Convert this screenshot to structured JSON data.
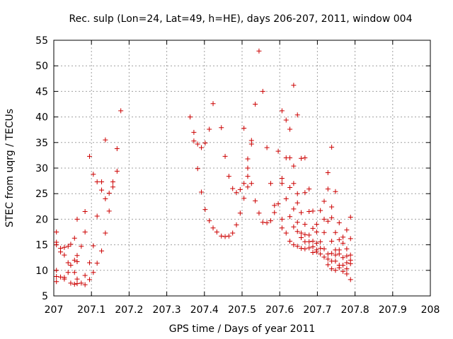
{
  "chart_data": {
    "type": "scatter",
    "title": "Rec. sulp (Lon=24, Lat=49, h=HE), days 206-207, 2011, window 004",
    "xlabel": "GPS time / Days of year 2011",
    "ylabel": "STEC from uqrg / TECUs",
    "xlim": [
      207,
      208
    ],
    "ylim": [
      5,
      55
    ],
    "x_ticks": [
      "207",
      "207.1",
      "207.2",
      "207.3",
      "207.4",
      "207.5",
      "207.6",
      "207.7",
      "207.8",
      "207.9",
      "208"
    ],
    "y_ticks": [
      "5",
      "10",
      "15",
      "20",
      "25",
      "30",
      "35",
      "40",
      "45",
      "50",
      "55"
    ],
    "grid": true,
    "marker": "+",
    "color": "#cc0000",
    "points": [
      [
        207.007,
        17.5
      ],
      [
        207.007,
        15.5
      ],
      [
        207.007,
        15.0
      ],
      [
        207.007,
        10.0
      ],
      [
        207.007,
        8.8
      ],
      [
        207.007,
        7.8
      ],
      [
        207.018,
        14.3
      ],
      [
        207.018,
        13.6
      ],
      [
        207.018,
        8.7
      ],
      [
        207.028,
        14.5
      ],
      [
        207.028,
        13.0
      ],
      [
        207.028,
        8.6
      ],
      [
        207.028,
        8.3
      ],
      [
        207.038,
        14.7
      ],
      [
        207.038,
        11.5
      ],
      [
        207.038,
        9.6
      ],
      [
        207.045,
        15.1
      ],
      [
        207.045,
        11.0
      ],
      [
        207.045,
        7.5
      ],
      [
        207.055,
        16.3
      ],
      [
        207.055,
        12.0
      ],
      [
        207.055,
        9.6
      ],
      [
        207.055,
        7.3
      ],
      [
        207.062,
        20.0
      ],
      [
        207.062,
        12.9
      ],
      [
        207.062,
        11.7
      ],
      [
        207.062,
        8.3
      ],
      [
        207.062,
        7.4
      ],
      [
        207.073,
        14.7
      ],
      [
        207.073,
        7.5
      ],
      [
        207.083,
        21.5
      ],
      [
        207.083,
        17.5
      ],
      [
        207.083,
        9.0
      ],
      [
        207.083,
        7.2
      ],
      [
        207.095,
        32.3
      ],
      [
        207.095,
        11.5
      ],
      [
        207.095,
        8.2
      ],
      [
        207.105,
        28.8
      ],
      [
        207.105,
        14.8
      ],
      [
        207.105,
        9.6
      ],
      [
        207.115,
        27.3
      ],
      [
        207.115,
        20.6
      ],
      [
        207.115,
        11.4
      ],
      [
        207.127,
        27.3
      ],
      [
        207.127,
        25.7
      ],
      [
        207.127,
        13.8
      ],
      [
        207.137,
        35.5
      ],
      [
        207.137,
        24.0
      ],
      [
        207.137,
        17.3
      ],
      [
        207.147,
        25.1
      ],
      [
        207.147,
        21.6
      ],
      [
        207.157,
        27.3
      ],
      [
        207.157,
        26.3
      ],
      [
        207.168,
        33.8
      ],
      [
        207.168,
        29.4
      ],
      [
        207.178,
        41.2
      ],
      [
        207.362,
        40.0
      ],
      [
        207.372,
        37.0
      ],
      [
        207.372,
        35.3
      ],
      [
        207.382,
        34.7
      ],
      [
        207.382,
        29.9
      ],
      [
        207.392,
        34.0
      ],
      [
        207.392,
        25.3
      ],
      [
        207.402,
        34.9
      ],
      [
        207.402,
        21.9
      ],
      [
        207.413,
        37.6
      ],
      [
        207.413,
        19.7
      ],
      [
        207.423,
        42.6
      ],
      [
        207.423,
        18.3
      ],
      [
        207.433,
        17.5
      ],
      [
        207.445,
        37.9
      ],
      [
        207.445,
        16.7
      ],
      [
        207.455,
        32.3
      ],
      [
        207.455,
        16.6
      ],
      [
        207.465,
        28.4
      ],
      [
        207.465,
        16.7
      ],
      [
        207.475,
        26.0
      ],
      [
        207.475,
        17.3
      ],
      [
        207.485,
        25.2
      ],
      [
        207.485,
        18.9
      ],
      [
        207.495,
        25.8
      ],
      [
        207.495,
        21.2
      ],
      [
        207.505,
        37.8
      ],
      [
        207.505,
        27.0
      ],
      [
        207.505,
        24.1
      ],
      [
        207.515,
        31.8
      ],
      [
        207.515,
        30.0
      ],
      [
        207.515,
        28.4
      ],
      [
        207.515,
        26.3
      ],
      [
        207.525,
        35.4
      ],
      [
        207.525,
        34.7
      ],
      [
        207.525,
        27.0
      ],
      [
        207.535,
        42.5
      ],
      [
        207.535,
        23.6
      ],
      [
        207.545,
        52.9
      ],
      [
        207.545,
        21.2
      ],
      [
        207.555,
        45.0
      ],
      [
        207.555,
        19.4
      ],
      [
        207.566,
        34.0
      ],
      [
        207.566,
        19.3
      ],
      [
        207.576,
        27.0
      ],
      [
        207.576,
        19.7
      ],
      [
        207.586,
        22.7
      ],
      [
        207.586,
        21.3
      ],
      [
        207.596,
        33.3
      ],
      [
        207.596,
        23.0
      ],
      [
        207.606,
        41.2
      ],
      [
        207.606,
        28.0
      ],
      [
        207.606,
        27.0
      ],
      [
        207.606,
        20.0
      ],
      [
        207.606,
        18.3
      ],
      [
        207.617,
        39.4
      ],
      [
        207.617,
        32.0
      ],
      [
        207.617,
        24.0
      ],
      [
        207.617,
        17.3
      ],
      [
        207.627,
        37.6
      ],
      [
        207.627,
        32.0
      ],
      [
        207.627,
        26.2
      ],
      [
        207.627,
        20.5
      ],
      [
        207.627,
        15.7
      ],
      [
        207.637,
        46.2
      ],
      [
        207.637,
        30.4
      ],
      [
        207.637,
        27.0
      ],
      [
        207.637,
        22.0
      ],
      [
        207.637,
        18.5
      ],
      [
        207.637,
        15.0
      ],
      [
        207.647,
        40.4
      ],
      [
        207.647,
        25.0
      ],
      [
        207.647,
        23.2
      ],
      [
        207.647,
        19.4
      ],
      [
        207.647,
        17.6
      ],
      [
        207.647,
        14.7
      ],
      [
        207.657,
        31.9
      ],
      [
        207.657,
        21.3
      ],
      [
        207.657,
        17.3
      ],
      [
        207.657,
        16.4
      ],
      [
        207.657,
        14.3
      ],
      [
        207.667,
        32.0
      ],
      [
        207.667,
        25.2
      ],
      [
        207.667,
        19.0
      ],
      [
        207.667,
        17.0
      ],
      [
        207.667,
        15.6
      ],
      [
        207.667,
        14.2
      ],
      [
        207.678,
        25.9
      ],
      [
        207.678,
        21.5
      ],
      [
        207.678,
        16.9
      ],
      [
        207.678,
        15.6
      ],
      [
        207.678,
        14.4
      ],
      [
        207.688,
        21.6
      ],
      [
        207.688,
        18.2
      ],
      [
        207.688,
        15.7
      ],
      [
        207.688,
        14.6
      ],
      [
        207.688,
        13.5
      ],
      [
        207.698,
        19.0
      ],
      [
        207.698,
        17.5
      ],
      [
        207.698,
        15.3
      ],
      [
        207.698,
        14.0
      ],
      [
        207.698,
        13.6
      ],
      [
        207.708,
        21.7
      ],
      [
        207.708,
        15.6
      ],
      [
        207.708,
        14.3
      ],
      [
        207.708,
        13.2
      ],
      [
        207.718,
        23.5
      ],
      [
        207.718,
        20.0
      ],
      [
        207.718,
        17.4
      ],
      [
        207.718,
        14.2
      ],
      [
        207.718,
        12.6
      ],
      [
        207.728,
        25.9
      ],
      [
        207.728,
        29.1
      ],
      [
        207.728,
        19.6
      ],
      [
        207.728,
        13.2
      ],
      [
        207.728,
        12.2
      ],
      [
        207.728,
        11.1
      ],
      [
        207.738,
        34.1
      ],
      [
        207.738,
        22.4
      ],
      [
        207.738,
        20.3
      ],
      [
        207.738,
        15.7
      ],
      [
        207.738,
        13.3
      ],
      [
        207.738,
        11.8
      ],
      [
        207.738,
        10.3
      ],
      [
        207.748,
        25.4
      ],
      [
        207.748,
        17.4
      ],
      [
        207.748,
        14.0
      ],
      [
        207.748,
        13.0
      ],
      [
        207.748,
        11.8
      ],
      [
        207.748,
        10.0
      ],
      [
        207.758,
        19.3
      ],
      [
        207.758,
        16.0
      ],
      [
        207.758,
        14.0
      ],
      [
        207.758,
        13.2
      ],
      [
        207.758,
        11.0
      ],
      [
        207.758,
        10.5
      ],
      [
        207.768,
        16.5
      ],
      [
        207.768,
        15.3
      ],
      [
        207.768,
        12.5
      ],
      [
        207.768,
        11.0
      ],
      [
        207.768,
        9.8
      ],
      [
        207.778,
        17.9
      ],
      [
        207.778,
        14.2
      ],
      [
        207.778,
        12.8
      ],
      [
        207.778,
        11.5
      ],
      [
        207.778,
        10.3
      ],
      [
        207.778,
        9.3
      ],
      [
        207.788,
        20.4
      ],
      [
        207.788,
        16.2
      ],
      [
        207.788,
        13.0
      ],
      [
        207.788,
        12.0
      ],
      [
        207.788,
        11.3
      ],
      [
        207.788,
        8.2
      ]
    ]
  }
}
